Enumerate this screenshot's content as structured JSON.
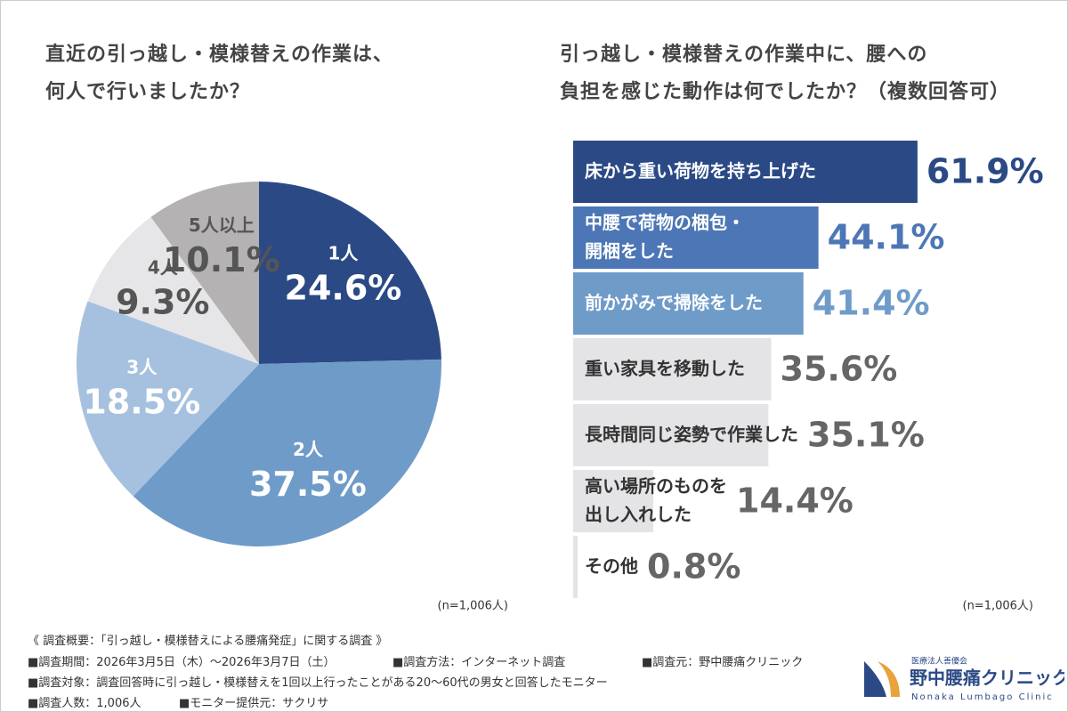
{
  "chart_data": [
    {
      "type": "pie",
      "title": "直近の引っ越し・模様替えの作業は、\n何人で行いましたか？",
      "categories": [
        "1人",
        "2人",
        "3人",
        "4人",
        "5人以上"
      ],
      "values": [
        24.6,
        37.5,
        18.5,
        9.3,
        10.1
      ],
      "value_labels": [
        "24.6%",
        "37.5%",
        "18.5%",
        "9.3%",
        "10.1%"
      ],
      "colors": [
        "#2b4a85",
        "#6f9bc9",
        "#a6c1df",
        "#e6e6e8",
        "#b4b2b3"
      ],
      "label_colors": [
        "#ffffff",
        "#ffffff",
        "#ffffff",
        "#555555",
        "#555555"
      ],
      "note": "(n=1,006人)"
    },
    {
      "type": "hbar",
      "title": "引っ越し・模様替えの作業中に、腰への\n負担を感じた動作は何でしたか？（複数回答可）",
      "categories": [
        "床から重い荷物を持ち上げた",
        "中腰で荷物の梱包・\n開梱をした",
        "前かがみで掃除をした",
        "重い家具を移動した",
        "長時間同じ姿勢で作業した",
        "高い場所のものを\n出し入れした",
        "その他"
      ],
      "values": [
        61.9,
        44.1,
        41.4,
        35.6,
        35.1,
        14.4,
        0.8
      ],
      "value_labels": [
        "61.9%",
        "44.1%",
        "41.4%",
        "35.6%",
        "35.1%",
        "14.4%",
        "0.8%"
      ],
      "colors": [
        "#2b4a85",
        "#4c76b5",
        "#6f9bc9",
        "#e4e4e6",
        "#e4e4e6",
        "#e4e4e6",
        "#e4e4e6"
      ],
      "text_colors": [
        "#ffffff",
        "#ffffff",
        "#ffffff",
        "#333333",
        "#333333",
        "#333333",
        "#333333"
      ],
      "label_colors": [
        "#2b4a85",
        "#4c76b5",
        "#6f9bc9",
        "#666666",
        "#666666",
        "#666666",
        "#666666"
      ],
      "xlim": [
        0,
        100
      ],
      "note": "(n=1,006人)"
    }
  ],
  "footer": {
    "heading": "《 調査概要：「引っ越し・模様替えによる腰痛発症」に関する調査 》",
    "period": "■調査期間：2026年3月5日（木）～2026年3月7日（土）",
    "method": "■調査方法：インターネット調査",
    "source": "■調査元：野中腰痛クリニック",
    "target": "■調査対象：調査回答時に引っ越し・模様替えを1回以上行ったことがある20～60代の男女と回答したモニター",
    "count": "■調査人数：1,006人",
    "provider": "■モニター提供元：サクリサ"
  },
  "logo": {
    "org": "医療法人善優会",
    "name": "野中腰痛クリニック",
    "sub": "Nonaka Lumbago Clinic"
  }
}
